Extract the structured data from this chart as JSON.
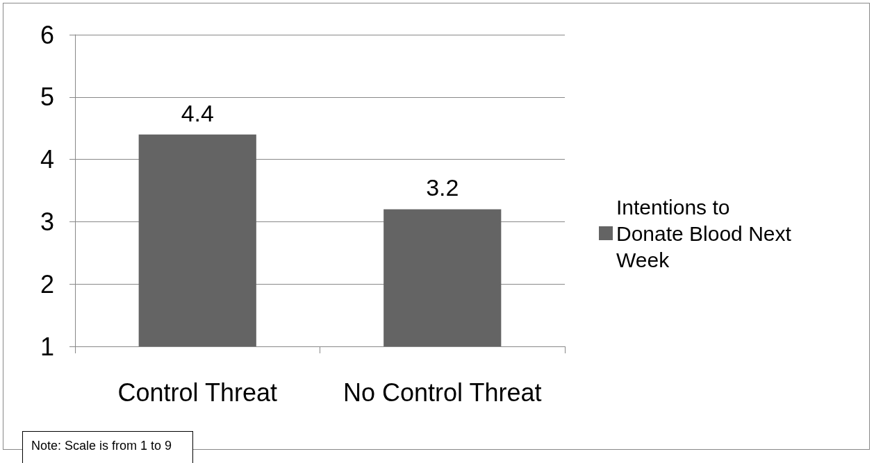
{
  "chart_data": {
    "type": "bar",
    "categories": [
      "Control Threat",
      "No Control Threat"
    ],
    "series": [
      {
        "name": "Intentions to Donate Blood Next Week",
        "color": "#646464",
        "values": [
          4.4,
          3.2
        ]
      }
    ],
    "ylim": [
      1,
      6
    ],
    "yticks": [
      1,
      2,
      3,
      4,
      5,
      6
    ],
    "grid": "y",
    "legend": "right",
    "data_labels": true,
    "annotations": [
      "Note: Scale is from 1 to 9"
    ]
  }
}
